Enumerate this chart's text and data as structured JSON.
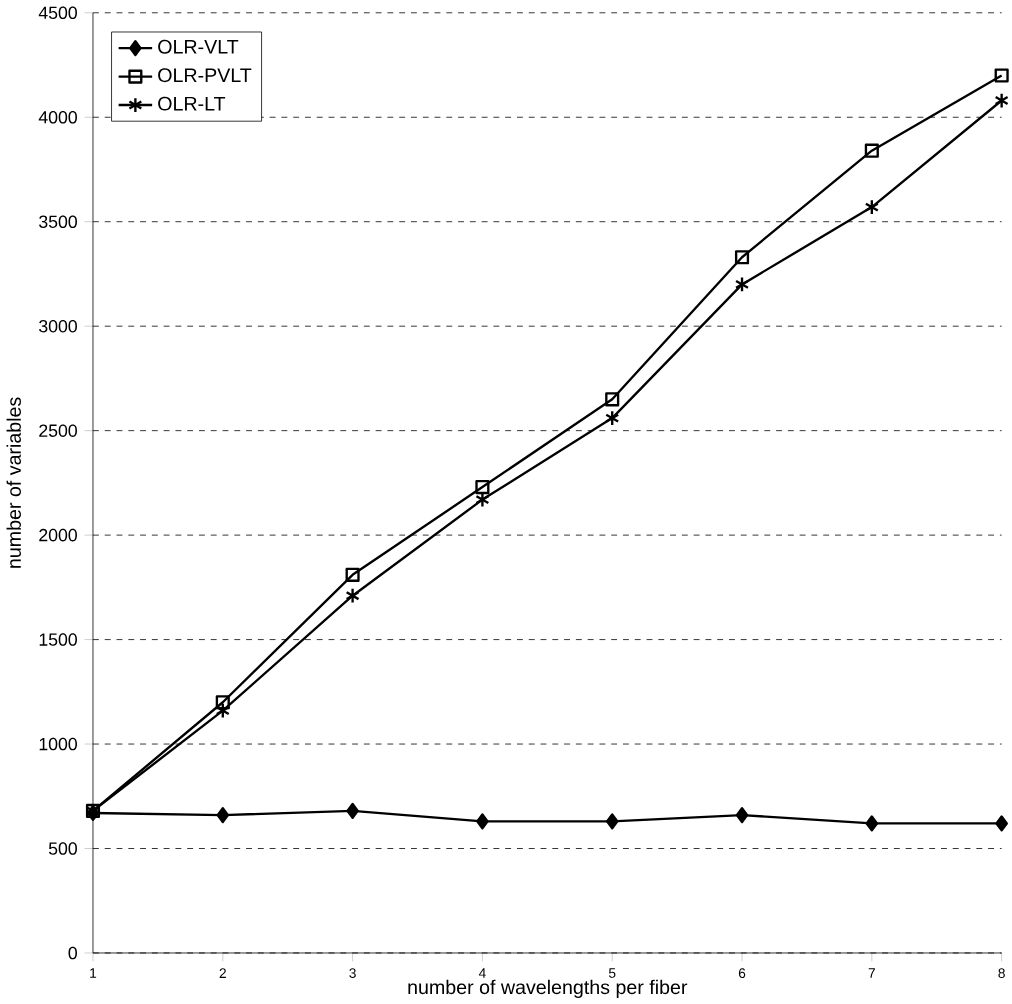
{
  "chart_data": {
    "type": "line",
    "xlabel": "number of wavelengths per fiber",
    "ylabel": "number of variables",
    "x": [
      1,
      2,
      3,
      4,
      5,
      6,
      7,
      8
    ],
    "xlim": [
      1,
      8
    ],
    "xticks": [
      1,
      2,
      3,
      4,
      5,
      6,
      7,
      8
    ],
    "ylim": [
      0,
      4500
    ],
    "yticks": [
      0,
      500,
      1000,
      1500,
      2000,
      2500,
      3000,
      3500,
      4000,
      4500
    ],
    "grid": "y",
    "legend": "top left",
    "series": [
      {
        "name": "OLR-VLT",
        "color": "#000000",
        "marker": "diamond",
        "values": [
          670,
          660,
          680,
          630,
          630,
          660,
          620,
          620
        ]
      },
      {
        "name": "OLR-PVLT",
        "color": "#000000",
        "marker": "square",
        "values": [
          680,
          1200,
          1810,
          2230,
          2650,
          3330,
          3840,
          4200
        ]
      },
      {
        "name": "OLR-LT",
        "color": "#000000",
        "marker": "cross",
        "values": [
          680,
          1160,
          1710,
          2170,
          2560,
          3200,
          3570,
          4080
        ]
      }
    ]
  }
}
